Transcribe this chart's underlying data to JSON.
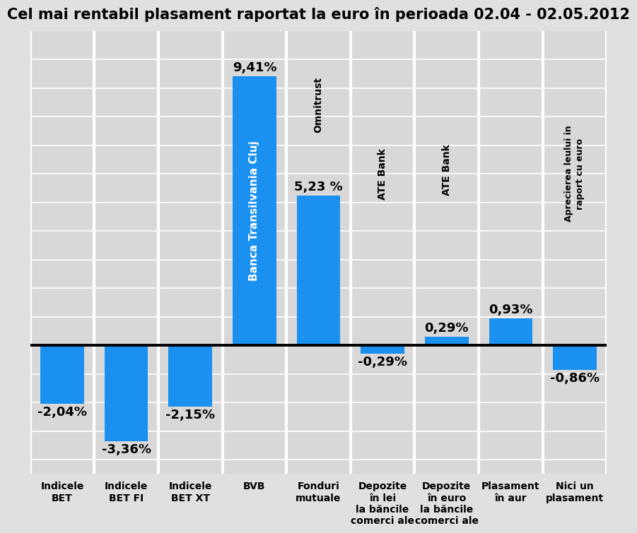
{
  "title": "Cel mai rentabil plasament raportat la euro în perioada 02.04 - 02.05.2012",
  "values": [
    -2.04,
    -3.36,
    -2.15,
    9.41,
    5.23,
    -0.29,
    0.29,
    0.93,
    -0.86
  ],
  "bar_labels": [
    "-2,04%",
    "-3,36%",
    "-2,15%",
    "9,41%",
    "5,23 %",
    "-0,29%",
    "0,29%",
    "0,93%",
    "-0,86%"
  ],
  "x_labels": [
    "Indicele\nBET",
    "Indicele\nBET FI",
    "Indicele\nBET XT",
    "BVB",
    "Fonduri\nmutuale",
    "Depozite\nîn lei\nla băncile\ncomerci ale",
    "Depozite\nîn euro\nla băncile\ncomerci ale",
    "Plasament\nîn aur",
    "Nici un\nplasament"
  ],
  "bar_color": "#1a90f0",
  "bg_color": "#e0e0e0",
  "col_bg_color": "#d8d8d8",
  "title_fontsize": 15,
  "bar_value_fontsize": 13
}
